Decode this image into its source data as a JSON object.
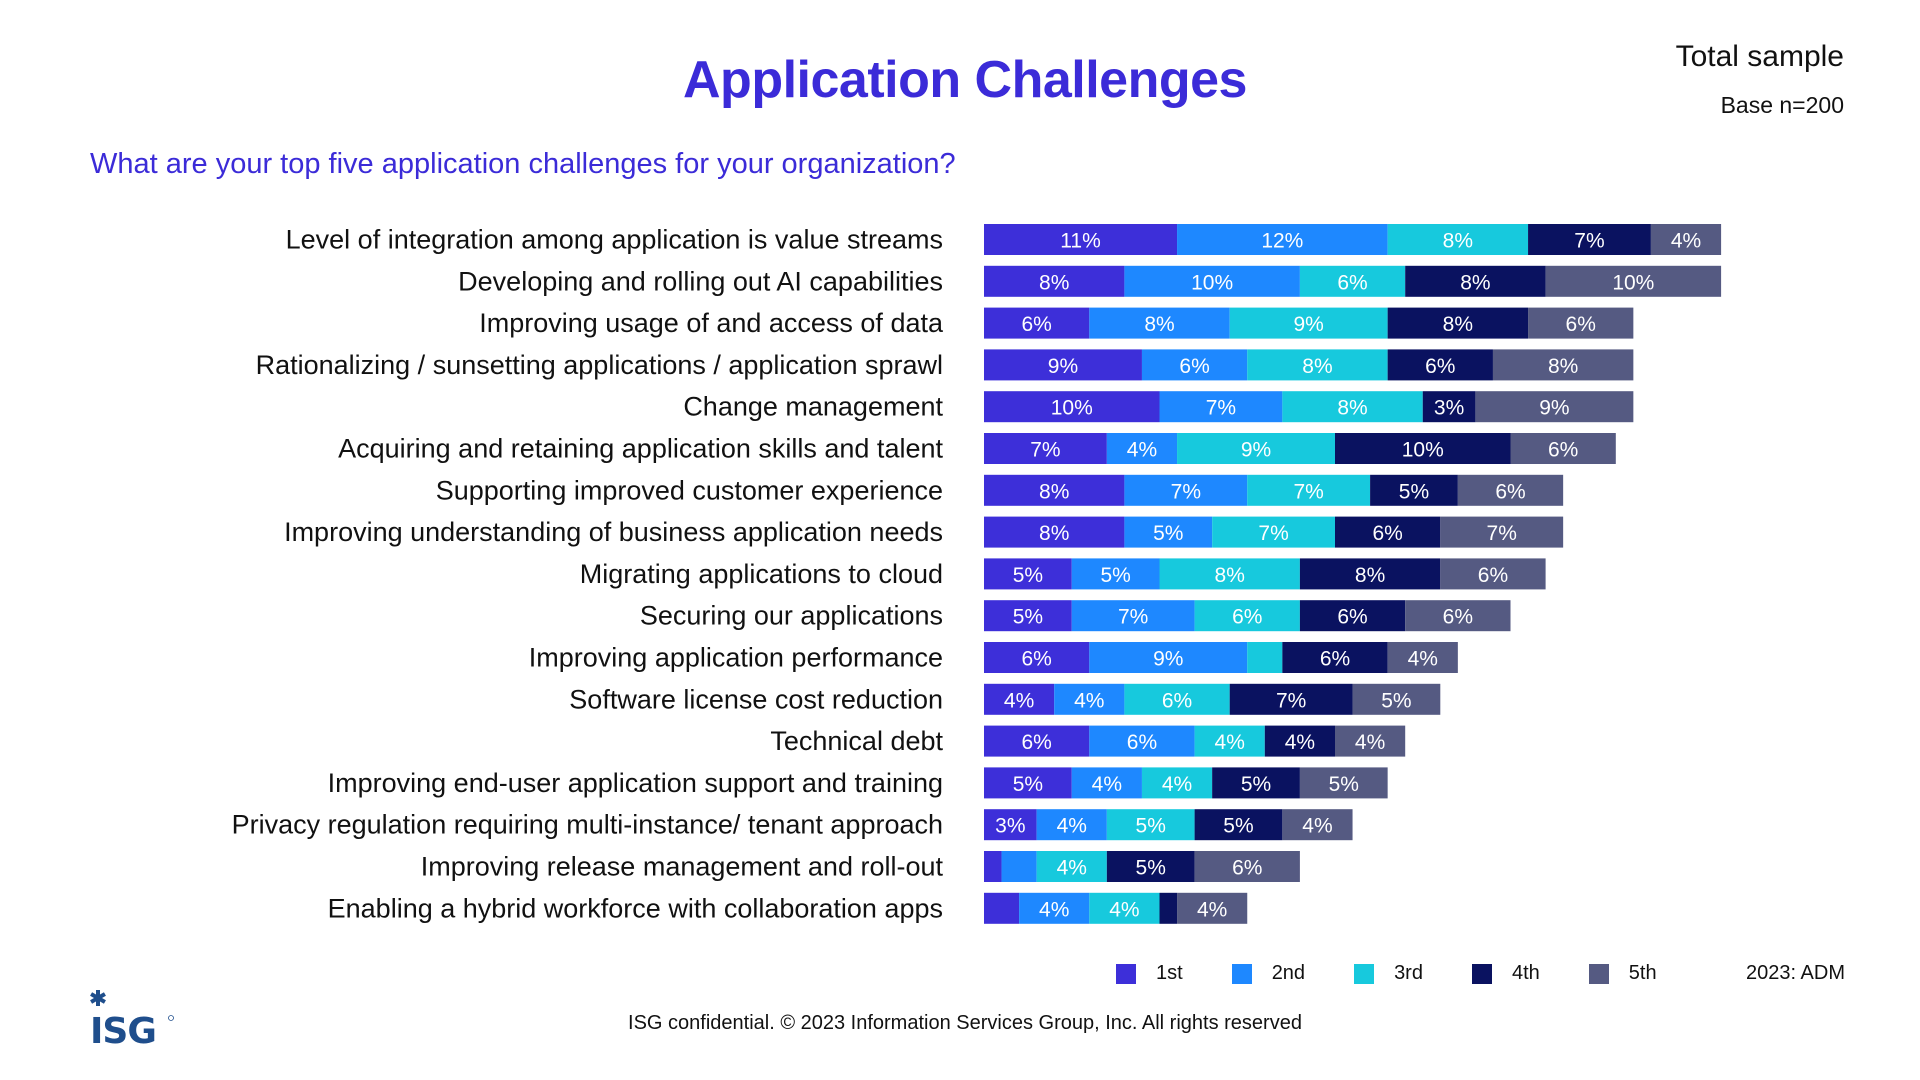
{
  "header": {
    "title": "Application Challenges",
    "sample_label": "Total sample",
    "base_label": "Base n=200",
    "question": "What are your top five application challenges for your organization?"
  },
  "colors": {
    "title": "#3B2BD8",
    "series": [
      "#3D2FD9",
      "#1E88FF",
      "#17C9DD",
      "#0A1260",
      "#555A82"
    ],
    "logo": "#1F4E8C"
  },
  "chart_data": {
    "type": "bar",
    "orientation": "horizontal",
    "stacked": true,
    "title": "Application Challenges",
    "subtitle": "What are your top five application challenges for your organization?",
    "xlabel": "",
    "ylabel": "",
    "unit": "%",
    "grid": false,
    "legend_position": "bottom-right",
    "categories": [
      "Level of integration among application is value streams",
      "Developing and rolling out AI capabilities",
      "Improving usage of and access of data",
      "Rationalizing / sunsetting applications / application sprawl",
      "Change management",
      "Acquiring and retaining application skills and talent",
      "Supporting improved customer experience",
      "Improving understanding of business application needs",
      "Migrating applications to cloud",
      "Securing our applications",
      "Improving application performance",
      "Software license cost reduction",
      "Technical debt",
      "Improving end-user application support and training",
      "Privacy regulation requiring multi-instance/ tenant approach",
      "Improving release management and roll-out",
      "Enabling a hybrid workforce with collaboration apps"
    ],
    "series": [
      {
        "name": "1st",
        "values": [
          11,
          8,
          6,
          9,
          10,
          7,
          8,
          8,
          5,
          5,
          6,
          4,
          6,
          5,
          3,
          1,
          2
        ],
        "labels": [
          "11%",
          "8%",
          "6%",
          "9%",
          "10%",
          "7%",
          "8%",
          "8%",
          "5%",
          "5%",
          "6%",
          "4%",
          "6%",
          "5%",
          "3%",
          "",
          ""
        ]
      },
      {
        "name": "2nd",
        "values": [
          12,
          10,
          8,
          6,
          7,
          4,
          7,
          5,
          5,
          7,
          9,
          4,
          6,
          4,
          4,
          2,
          4
        ],
        "labels": [
          "12%",
          "10%",
          "8%",
          "6%",
          "7%",
          "4%",
          "7%",
          "5%",
          "5%",
          "7%",
          "9%",
          "4%",
          "6%",
          "4%",
          "4%",
          "",
          "4%"
        ]
      },
      {
        "name": "3rd",
        "values": [
          8,
          6,
          9,
          8,
          8,
          9,
          7,
          7,
          8,
          6,
          2,
          6,
          4,
          4,
          5,
          4,
          4
        ],
        "labels": [
          "8%",
          "6%",
          "9%",
          "8%",
          "8%",
          "9%",
          "7%",
          "7%",
          "8%",
          "6%",
          "",
          "6%",
          "4%",
          "4%",
          "5%",
          "4%",
          "4%"
        ]
      },
      {
        "name": "4th",
        "values": [
          7,
          8,
          8,
          6,
          3,
          10,
          5,
          6,
          8,
          6,
          6,
          7,
          4,
          5,
          5,
          5,
          1
        ],
        "labels": [
          "7%",
          "8%",
          "8%",
          "6%",
          "3%",
          "10%",
          "5%",
          "6%",
          "8%",
          "6%",
          "6%",
          "7%",
          "4%",
          "5%",
          "5%",
          "5%",
          ""
        ]
      },
      {
        "name": "5th",
        "values": [
          4,
          10,
          6,
          8,
          9,
          6,
          6,
          7,
          6,
          6,
          4,
          5,
          4,
          5,
          4,
          6,
          4
        ],
        "labels": [
          "4%",
          "10%",
          "6%",
          "8%",
          "9%",
          "6%",
          "6%",
          "7%",
          "6%",
          "6%",
          "4%",
          "5%",
          "4%",
          "5%",
          "4%",
          "6%",
          "4%"
        ]
      }
    ]
  },
  "legend": {
    "items": [
      "1st",
      "2nd",
      "3rd",
      "4th",
      "5th"
    ],
    "source": "2023: ADM"
  },
  "footer": {
    "copyright": "ISG confidential. © 2023 Information Services Group, Inc. All rights reserved",
    "logo_text": "ISG",
    "logo_icon": "asterisk-icon"
  }
}
